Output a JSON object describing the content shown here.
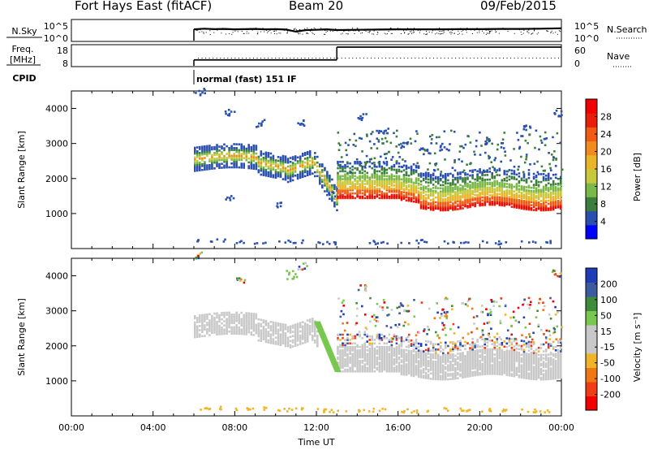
{
  "header": {
    "title": "Fort Hays East (fitACF)",
    "beam": "Beam 20",
    "date": "09/Feb/2015"
  },
  "chart_data": [
    {
      "type": "line",
      "name": "N.Sky / N.Search",
      "left_label": "N.Sky",
      "right_label": "N.Search",
      "left_ticks": [
        "10^5",
        "10^0"
      ],
      "right_ticks": [
        "10^5",
        "10^0"
      ],
      "x": [
        6,
        6.5,
        7,
        7.5,
        8,
        8.5,
        9,
        9.5,
        10,
        10.5,
        11,
        11.5,
        12,
        12.5,
        13,
        14,
        15,
        16,
        17,
        18,
        19,
        20,
        21,
        22,
        23,
        24
      ],
      "sky_level": [
        0.55,
        0.58,
        0.56,
        0.57,
        0.55,
        0.56,
        0.57,
        0.55,
        0.56,
        0.54,
        0.45,
        0.52,
        0.53,
        0.55,
        0.52,
        0.53,
        0.54,
        0.55,
        0.55,
        0.55,
        0.56,
        0.56,
        0.57,
        0.57,
        0.58,
        0.6
      ]
    },
    {
      "type": "line",
      "name": "Freq / Nave",
      "left_label": "Freq.",
      "left_unit": "[MHz]",
      "right_label": "Nave",
      "left_ticks": [
        "18",
        "8"
      ],
      "right_ticks": [
        "60",
        "0"
      ],
      "freq_segments": [
        {
          "x0": 6,
          "x1": 13,
          "y": 10.5
        },
        {
          "x0": 13,
          "x1": 24,
          "y": 18
        }
      ],
      "nave_level": 0.45
    },
    {
      "type": "text",
      "name": "CPID",
      "label": "CPID",
      "text": "normal (fast) 151 IF",
      "x0": 6
    },
    {
      "type": "heatmap",
      "name": "Power",
      "ylabel": "Slant Range [km]",
      "yticks": [
        1000,
        2000,
        3000,
        4000
      ],
      "ylim": [
        0,
        4500
      ],
      "xlim": [
        0,
        24
      ],
      "colorbar": {
        "label": "Power [dB]",
        "ticks": [
          "28",
          "24",
          "20",
          "16",
          "12",
          "8",
          "4"
        ],
        "colors": [
          "#0000ff",
          "#2a4fae",
          "#3c7f3c",
          "#7ab84a",
          "#c8c83c",
          "#e8b428",
          "#f08c1e",
          "#f05a14",
          "#e81e0a",
          "#f00000"
        ]
      },
      "scatter_top": [
        [
          6,
          4400
        ],
        [
          7.5,
          3800
        ],
        [
          9,
          3500
        ],
        [
          11,
          3500
        ],
        [
          14,
          3700
        ],
        [
          15,
          3300
        ],
        [
          16,
          2900
        ],
        [
          17,
          2700
        ],
        [
          18,
          2800
        ],
        [
          20,
          3000
        ],
        [
          22,
          3400
        ],
        [
          23.5,
          3800
        ]
      ],
      "scatter_bottom": [
        [
          6,
          200
        ],
        [
          8,
          150
        ],
        [
          10,
          180
        ],
        [
          12,
          120
        ],
        [
          14,
          150
        ],
        [
          16,
          180
        ],
        [
          18,
          150
        ],
        [
          20,
          140
        ],
        [
          22,
          150
        ]
      ],
      "low_echoes": [
        [
          7.5,
          1400
        ],
        [
          10,
          1200
        ],
        [
          12.5,
          1500
        ]
      ]
    },
    {
      "type": "heatmap",
      "name": "Velocity",
      "ylabel": "Slant Range [km]",
      "yticks": [
        1000,
        2000,
        3000,
        4000
      ],
      "ylim": [
        0,
        4500
      ],
      "xlim": [
        0,
        24
      ],
      "colorbar": {
        "label": "Velocity [m s⁻¹]",
        "ticks": [
          "200",
          "100",
          "50",
          "15",
          "-15",
          "-50",
          "-100",
          "-200"
        ],
        "colors": [
          "#f00000",
          "#f03c14",
          "#f07814",
          "#f0b428",
          "#c8c8c8",
          "#c8c8c8",
          "#78c850",
          "#3c8c3c",
          "#3c5aa0",
          "#1e3cb4"
        ]
      },
      "xticks": [
        "00:00",
        "04:00",
        "08:00",
        "12:00",
        "16:00",
        "20:00",
        "00:00"
      ],
      "xlabel": "Time UT",
      "green_streak": [
        [
          12.0,
          2700
        ],
        [
          13.0,
          1300
        ]
      ],
      "green_blob": [
        [
          10.5,
          4200
        ],
        [
          11.0,
          3900
        ]
      ],
      "scatter_top": [
        [
          6,
          4500
        ],
        [
          8,
          3800
        ],
        [
          11,
          4200
        ],
        [
          14,
          3600
        ],
        [
          16,
          3000
        ],
        [
          18,
          2800
        ],
        [
          20,
          2900
        ],
        [
          22,
          3200
        ],
        [
          23.5,
          4000
        ]
      ],
      "scatter_bottom": [
        [
          6,
          200
        ],
        [
          8,
          180
        ],
        [
          10,
          150
        ],
        [
          12,
          130
        ],
        [
          14,
          140
        ],
        [
          16,
          120
        ],
        [
          18,
          160
        ],
        [
          20,
          140
        ],
        [
          22,
          130
        ]
      ]
    }
  ]
}
